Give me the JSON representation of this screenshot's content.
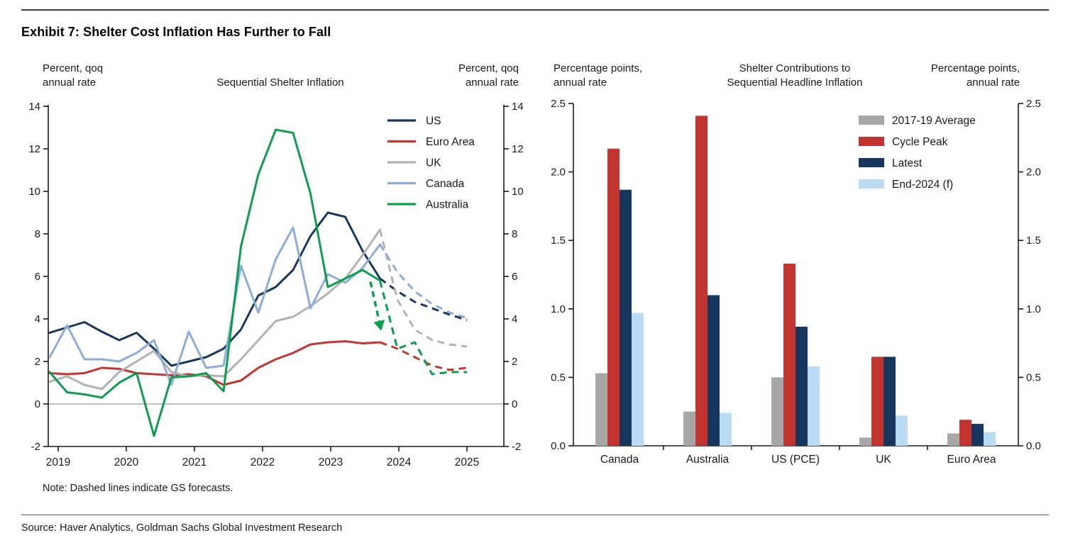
{
  "page": {
    "title": "Exhibit 7: Shelter Cost Inflation Has Further to Fall",
    "note": "Note: Dashed lines indicate GS forecasts.",
    "source": "Source: Haver Analytics, Goldman Sachs Global Investment Research"
  },
  "colors": {
    "us_navy": "#17375e",
    "euro_red": "#c23632",
    "uk_gray": "#b2b2b2",
    "canada_blue": "#8cacd9",
    "australia_green": "#0c9e4e",
    "bar_gray": "#a7a7a7",
    "bar_red": "#c2342f",
    "bar_navy": "#17375e",
    "bar_lightblue": "#b9dbf4",
    "axis": "#1a1a1a",
    "zero_line": "#999999"
  },
  "chart_data": [
    {
      "type": "line",
      "title": "Sequential Shelter Inflation",
      "caption_left": [
        "Percent, qoq",
        "annual rate"
      ],
      "caption_right": [
        "Percent, qoq",
        "annual rate"
      ],
      "ylim": [
        -2,
        14
      ],
      "ytick_values": [
        14,
        12,
        10,
        8,
        6,
        4,
        2,
        0,
        -2
      ],
      "ytick_labels": [
        "14",
        "12",
        "10",
        "8",
        "6",
        "4",
        "2",
        "0",
        "-2"
      ],
      "xtick_labels": [
        "2019",
        "2020",
        "2021",
        "2022",
        "2023",
        "2024",
        "2025"
      ],
      "x_frequency": "quarterly",
      "x_range": "2019Q1-2025Q1",
      "grid": "zero-line-only",
      "legend_position": "top-right-inside",
      "note": "dashed segments are GS forecasts",
      "solid_until_index": 19,
      "series": [
        {
          "name": "US",
          "color": "#17375e",
          "values": [
            3.35,
            3.6,
            3.85,
            3.4,
            3.0,
            3.35,
            2.6,
            1.8,
            2.0,
            2.2,
            2.6,
            3.5,
            5.1,
            5.5,
            6.3,
            7.9,
            9.0,
            8.8,
            7.2,
            5.9,
            5.3,
            4.8,
            4.5,
            4.2,
            3.95
          ]
        },
        {
          "name": "Euro Area",
          "color": "#c23632",
          "values": [
            1.45,
            1.4,
            1.45,
            1.7,
            1.65,
            1.45,
            1.4,
            1.35,
            1.4,
            1.3,
            0.9,
            1.1,
            1.7,
            2.1,
            2.4,
            2.8,
            2.9,
            2.95,
            2.85,
            2.9,
            2.6,
            2.2,
            1.8,
            1.6,
            1.7
          ]
        },
        {
          "name": "UK",
          "color": "#b2b2b2",
          "values": [
            1.05,
            1.3,
            0.9,
            0.7,
            1.5,
            2.0,
            2.5,
            1.5,
            1.3,
            1.35,
            1.3,
            2.1,
            3.0,
            3.9,
            4.1,
            4.6,
            5.2,
            5.9,
            7.0,
            8.2,
            4.9,
            3.5,
            3.0,
            2.8,
            2.7
          ]
        },
        {
          "name": "Canada",
          "color": "#8cacd9",
          "values": [
            2.2,
            3.7,
            2.1,
            2.1,
            2.0,
            2.4,
            3.0,
            0.9,
            3.4,
            1.7,
            1.8,
            6.5,
            4.3,
            6.8,
            8.3,
            4.5,
            6.1,
            5.7,
            6.4,
            7.5,
            6.2,
            5.3,
            4.7,
            4.3,
            4.05
          ]
        },
        {
          "name": "Australia",
          "color": "#0c9e4e",
          "values": [
            1.5,
            0.55,
            0.45,
            0.3,
            1.0,
            1.45,
            -1.5,
            1.25,
            1.3,
            1.45,
            0.6,
            7.4,
            10.8,
            12.9,
            12.75,
            9.9,
            5.5,
            5.9,
            6.3,
            5.8,
            2.6,
            2.9,
            1.4,
            1.5,
            1.5
          ]
        }
      ],
      "annotation_arrow": {
        "color": "#0c9e4e",
        "style": "dashed",
        "x1_index": 18.45,
        "v1": 5.75,
        "x2_index": 18.95,
        "v2": 3.9
      }
    },
    {
      "type": "bar",
      "title_lines": [
        "Shelter Contributions to",
        "Sequential Headline Inflation"
      ],
      "caption_left": [
        "Percentage points,",
        "annual rate"
      ],
      "caption_right": [
        "Percentage points,",
        "annual rate"
      ],
      "ylim": [
        0,
        2.5
      ],
      "ytick_values": [
        2.5,
        2.0,
        1.5,
        1.0,
        0.5,
        0.0
      ],
      "ytick_labels": [
        "2.5",
        "2.0",
        "1.5",
        "1.0",
        "0.5",
        "0.0"
      ],
      "categories": [
        "Canada",
        "Australia",
        "US (PCE)",
        "UK",
        "Euro Area"
      ],
      "grid": "off",
      "legend_position": "top-right-inside",
      "series": [
        {
          "name": "2017-19 Average",
          "color": "#a7a7a7",
          "values": [
            0.53,
            0.25,
            0.5,
            0.06,
            0.09
          ]
        },
        {
          "name": "Cycle Peak",
          "color": "#c2342f",
          "values": [
            2.17,
            2.41,
            1.33,
            0.65,
            0.19
          ]
        },
        {
          "name": "Latest",
          "color": "#17375e",
          "values": [
            1.87,
            1.1,
            0.87,
            0.65,
            0.16
          ]
        },
        {
          "name": "End-2024 (f)",
          "color": "#b9dbf4",
          "values": [
            0.97,
            0.24,
            0.58,
            0.22,
            0.1
          ]
        }
      ]
    }
  ]
}
